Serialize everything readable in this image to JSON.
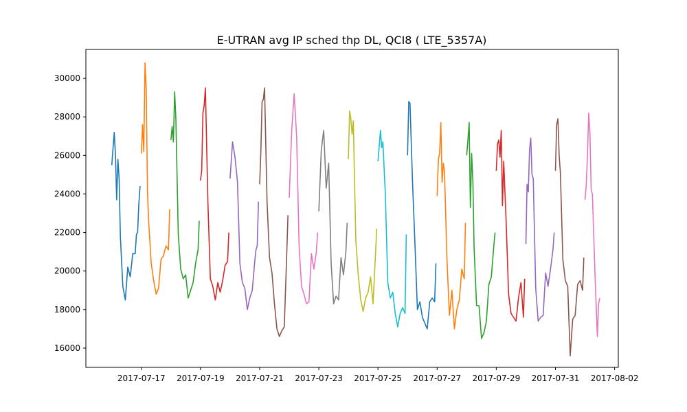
{
  "chart_data": {
    "type": "line",
    "title": "E-UTRAN avg IP sched thp DL, QCI8 ( LTE_5357A)",
    "xlabel": "",
    "ylabel": "",
    "xlim": [
      "2017-07-15T03:00",
      "2017-08-02T03:00"
    ],
    "ylim": [
      15000,
      31500
    ],
    "grid": false,
    "x_ticks": [
      "2017-07-17",
      "2017-07-19",
      "2017-07-21",
      "2017-07-23",
      "2017-07-25",
      "2017-07-27",
      "2017-07-29",
      "2017-07-31",
      "2017-08-02"
    ],
    "y_ticks": [
      16000,
      18000,
      20000,
      22000,
      24000,
      26000,
      28000,
      30000
    ],
    "series": [
      {
        "color": "#1f77b4",
        "x": [
          "2017-07-16T00:00",
          "2017-07-16T02:00",
          "2017-07-16T03:00",
          "2017-07-16T04:00",
          "2017-07-16T05:00",
          "2017-07-16T06:00",
          "2017-07-16T07:00",
          "2017-07-16T09:00",
          "2017-07-16T11:00",
          "2017-07-16T13:00",
          "2017-07-16T15:00",
          "2017-07-16T17:00",
          "2017-07-16T19:00",
          "2017-07-16T20:00",
          "2017-07-16T21:00",
          "2017-07-16T22:00",
          "2017-07-16T23:00"
        ],
        "y": [
          25500,
          27200,
          26000,
          23700,
          25800,
          24800,
          21800,
          19200,
          18500,
          20200,
          19700,
          20900,
          20900,
          21900,
          22000,
          23500,
          24400
        ]
      },
      {
        "color": "#ff7f0e",
        "x": [
          "2017-07-17T00:00",
          "2017-07-17T01:00",
          "2017-07-17T02:00",
          "2017-07-17T03:00",
          "2017-07-17T04:00",
          "2017-07-17T05:00",
          "2017-07-17T06:00",
          "2017-07-17T08:00",
          "2017-07-17T10:00",
          "2017-07-17T12:00",
          "2017-07-17T14:00",
          "2017-07-17T16:00",
          "2017-07-17T18:00",
          "2017-07-17T20:00",
          "2017-07-17T22:00",
          "2017-07-17T23:00"
        ],
        "y": [
          26100,
          27600,
          26200,
          30800,
          29400,
          24100,
          22500,
          20400,
          19500,
          18800,
          19100,
          20600,
          20800,
          21300,
          21100,
          23200
        ]
      },
      {
        "color": "#2ca02c",
        "x": [
          "2017-07-18T00:00",
          "2017-07-18T01:00",
          "2017-07-18T02:00",
          "2017-07-18T03:00",
          "2017-07-18T04:00",
          "2017-07-18T06:00",
          "2017-07-18T08:00",
          "2017-07-18T10:00",
          "2017-07-18T12:00",
          "2017-07-18T14:00",
          "2017-07-18T16:00",
          "2017-07-18T18:00",
          "2017-07-18T20:00",
          "2017-07-18T22:00",
          "2017-07-18T23:00"
        ],
        "y": [
          26800,
          27500,
          26700,
          29300,
          27900,
          21900,
          20100,
          19600,
          19800,
          18600,
          19000,
          19400,
          20400,
          21100,
          22600
        ]
      },
      {
        "color": "#d62728",
        "x": [
          "2017-07-19T00:00",
          "2017-07-19T01:00",
          "2017-07-19T02:00",
          "2017-07-19T03:00",
          "2017-07-19T04:00",
          "2017-07-19T06:00",
          "2017-07-19T08:00",
          "2017-07-19T10:00",
          "2017-07-19T12:00",
          "2017-07-19T14:00",
          "2017-07-19T16:00",
          "2017-07-19T18:00",
          "2017-07-19T20:00",
          "2017-07-19T22:00",
          "2017-07-19T23:00"
        ],
        "y": [
          24700,
          25200,
          28200,
          28600,
          29500,
          23600,
          19600,
          19200,
          18500,
          19400,
          18900,
          19500,
          20300,
          20500,
          22000
        ]
      },
      {
        "color": "#9467bd",
        "x": [
          "2017-07-20T00:00",
          "2017-07-20T02:00",
          "2017-07-20T04:00",
          "2017-07-20T06:00",
          "2017-07-20T08:00",
          "2017-07-20T10:00",
          "2017-07-20T12:00",
          "2017-07-20T14:00",
          "2017-07-20T16:00",
          "2017-07-20T18:00",
          "2017-07-20T20:00",
          "2017-07-20T21:00",
          "2017-07-20T22:00",
          "2017-07-20T23:00"
        ],
        "y": [
          24800,
          26700,
          25900,
          24600,
          20400,
          19400,
          19100,
          18000,
          18600,
          19000,
          20500,
          21100,
          21300,
          23600
        ]
      },
      {
        "color": "#8c564b",
        "x": [
          "2017-07-21T00:00",
          "2017-07-21T01:00",
          "2017-07-21T02:00",
          "2017-07-21T03:00",
          "2017-07-21T04:00",
          "2017-07-21T06:00",
          "2017-07-21T08:00",
          "2017-07-21T10:00",
          "2017-07-21T12:00",
          "2017-07-21T14:00",
          "2017-07-21T16:00",
          "2017-07-21T18:00",
          "2017-07-21T20:00",
          "2017-07-21T22:00",
          "2017-07-21T23:00"
        ],
        "y": [
          24500,
          26200,
          28800,
          28900,
          29500,
          23600,
          20700,
          19900,
          18300,
          17000,
          16600,
          16900,
          17100,
          20900,
          22900
        ]
      },
      {
        "color": "#e377c2",
        "x": [
          "2017-07-22T00:00",
          "2017-07-22T02:00",
          "2017-07-22T04:00",
          "2017-07-22T06:00",
          "2017-07-22T08:00",
          "2017-07-22T10:00",
          "2017-07-22T12:00",
          "2017-07-22T14:00",
          "2017-07-22T16:00",
          "2017-07-22T18:00",
          "2017-07-22T20:00",
          "2017-07-22T22:00",
          "2017-07-22T23:00"
        ],
        "y": [
          23800,
          27300,
          29200,
          27000,
          21300,
          19200,
          18800,
          18300,
          18400,
          20900,
          20100,
          21000,
          22000
        ]
      },
      {
        "color": "#7f7f7f",
        "x": [
          "2017-07-23T00:00",
          "2017-07-23T02:00",
          "2017-07-23T04:00",
          "2017-07-23T06:00",
          "2017-07-23T08:00",
          "2017-07-23T10:00",
          "2017-07-23T12:00",
          "2017-07-23T14:00",
          "2017-07-23T16:00",
          "2017-07-23T18:00",
          "2017-07-23T20:00",
          "2017-07-23T22:00",
          "2017-07-23T23:00"
        ],
        "y": [
          23100,
          26300,
          27300,
          24300,
          25600,
          20400,
          18300,
          18700,
          18500,
          20700,
          19800,
          21000,
          22500
        ]
      },
      {
        "color": "#bcbd22",
        "x": [
          "2017-07-24T00:00",
          "2017-07-24T01:00",
          "2017-07-24T02:00",
          "2017-07-24T03:00",
          "2017-07-24T04:00",
          "2017-07-24T06:00",
          "2017-07-24T08:00",
          "2017-07-24T10:00",
          "2017-07-24T12:00",
          "2017-07-24T14:00",
          "2017-07-24T16:00",
          "2017-07-24T18:00",
          "2017-07-24T20:00",
          "2017-07-24T22:00",
          "2017-07-24T23:00"
        ],
        "y": [
          25800,
          28300,
          27900,
          27100,
          27800,
          21600,
          19800,
          18500,
          17900,
          18600,
          18900,
          19700,
          18300,
          20900,
          22200
        ]
      },
      {
        "color": "#17becf",
        "x": [
          "2017-07-25T00:00",
          "2017-07-25T02:00",
          "2017-07-25T03:00",
          "2017-07-25T04:00",
          "2017-07-25T06:00",
          "2017-07-25T08:00",
          "2017-07-25T10:00",
          "2017-07-25T12:00",
          "2017-07-25T14:00",
          "2017-07-25T16:00",
          "2017-07-25T18:00",
          "2017-07-25T20:00",
          "2017-07-25T22:00",
          "2017-07-25T23:00"
        ],
        "y": [
          25700,
          27300,
          26400,
          26700,
          24000,
          19400,
          18600,
          18900,
          17800,
          17100,
          17800,
          18100,
          17800,
          21900
        ]
      },
      {
        "color": "#1f77b4",
        "x": [
          "2017-07-26T00:00",
          "2017-07-26T01:00",
          "2017-07-26T02:00",
          "2017-07-26T04:00",
          "2017-07-26T06:00",
          "2017-07-26T08:00",
          "2017-07-26T10:00",
          "2017-07-26T12:00",
          "2017-07-26T14:00",
          "2017-07-26T16:00",
          "2017-07-26T18:00",
          "2017-07-26T20:00",
          "2017-07-26T22:00",
          "2017-07-26T23:00"
        ],
        "y": [
          26000,
          28800,
          28700,
          24700,
          21400,
          18000,
          18400,
          17600,
          17300,
          17000,
          18400,
          18600,
          18400,
          20400
        ]
      },
      {
        "color": "#ff7f0e",
        "x": [
          "2017-07-27T00:00",
          "2017-07-27T01:00",
          "2017-07-27T02:00",
          "2017-07-27T03:00",
          "2017-07-27T04:00",
          "2017-07-27T05:00",
          "2017-07-27T06:00",
          "2017-07-27T08:00",
          "2017-07-27T10:00",
          "2017-07-27T12:00",
          "2017-07-27T14:00",
          "2017-07-27T16:00",
          "2017-07-27T18:00",
          "2017-07-27T20:00",
          "2017-07-27T22:00",
          "2017-07-27T23:00"
        ],
        "y": [
          23900,
          25800,
          26100,
          27700,
          24600,
          25600,
          25200,
          20600,
          17700,
          19000,
          17000,
          18000,
          18500,
          20100,
          19600,
          22500
        ]
      },
      {
        "color": "#2ca02c",
        "x": [
          "2017-07-28T00:00",
          "2017-07-28T01:00",
          "2017-07-28T02:00",
          "2017-07-28T03:00",
          "2017-07-28T04:00",
          "2017-07-28T05:00",
          "2017-07-28T06:00",
          "2017-07-28T08:00",
          "2017-07-28T10:00",
          "2017-07-28T12:00",
          "2017-07-28T14:00",
          "2017-07-28T16:00",
          "2017-07-28T18:00",
          "2017-07-28T20:00",
          "2017-07-28T22:00",
          "2017-07-28T23:00"
        ],
        "y": [
          26000,
          26800,
          27700,
          23300,
          26100,
          24700,
          21200,
          18200,
          18200,
          16500,
          16800,
          17400,
          19300,
          19700,
          21300,
          22000
        ]
      },
      {
        "color": "#d62728",
        "x": [
          "2017-07-29T00:00",
          "2017-07-29T01:00",
          "2017-07-29T02:00",
          "2017-07-29T03:00",
          "2017-07-29T04:00",
          "2017-07-29T05:00",
          "2017-07-29T06:00",
          "2017-07-29T08:00",
          "2017-07-29T10:00",
          "2017-07-29T12:00",
          "2017-07-29T14:00",
          "2017-07-29T16:00",
          "2017-07-29T18:00",
          "2017-07-29T20:00",
          "2017-07-29T22:00",
          "2017-07-29T23:00"
        ],
        "y": [
          25200,
          26600,
          26800,
          25900,
          27300,
          23400,
          25700,
          22600,
          18800,
          17800,
          17600,
          17400,
          18600,
          19400,
          17600,
          19600
        ]
      },
      {
        "color": "#9467bd",
        "x": [
          "2017-07-30T00:00",
          "2017-07-30T01:00",
          "2017-07-30T02:00",
          "2017-07-30T03:00",
          "2017-07-30T04:00",
          "2017-07-30T05:00",
          "2017-07-30T06:00",
          "2017-07-30T08:00",
          "2017-07-30T10:00",
          "2017-07-30T12:00",
          "2017-07-30T14:00",
          "2017-07-30T16:00",
          "2017-07-30T18:00",
          "2017-07-30T20:00",
          "2017-07-30T22:00",
          "2017-07-30T23:00"
        ],
        "y": [
          21400,
          24500,
          24100,
          26300,
          26900,
          25000,
          24800,
          19100,
          17400,
          17600,
          17700,
          19900,
          19200,
          20100,
          21100,
          22000
        ]
      },
      {
        "color": "#8c564b",
        "x": [
          "2017-07-31T00:00",
          "2017-07-31T01:00",
          "2017-07-31T02:00",
          "2017-07-31T03:00",
          "2017-07-31T04:00",
          "2017-07-31T06:00",
          "2017-07-31T08:00",
          "2017-07-31T10:00",
          "2017-07-31T12:00",
          "2017-07-31T14:00",
          "2017-07-31T16:00",
          "2017-07-31T18:00",
          "2017-07-31T20:00",
          "2017-07-31T22:00",
          "2017-07-31T23:00"
        ],
        "y": [
          25200,
          27600,
          27900,
          26000,
          25100,
          20600,
          19500,
          19200,
          15600,
          17500,
          17700,
          19300,
          19500,
          19000,
          20700
        ]
      },
      {
        "color": "#e377c2",
        "x": [
          "2017-08-01T00:00",
          "2017-08-01T01:00",
          "2017-08-01T02:00",
          "2017-08-01T03:00",
          "2017-08-01T04:00",
          "2017-08-01T05:00",
          "2017-08-01T06:00",
          "2017-08-01T08:00",
          "2017-08-01T10:00",
          "2017-08-01T11:00",
          "2017-08-01T12:00"
        ],
        "y": [
          23700,
          24500,
          26100,
          28200,
          27200,
          24200,
          24000,
          20000,
          16600,
          18300,
          18600
        ]
      }
    ]
  }
}
